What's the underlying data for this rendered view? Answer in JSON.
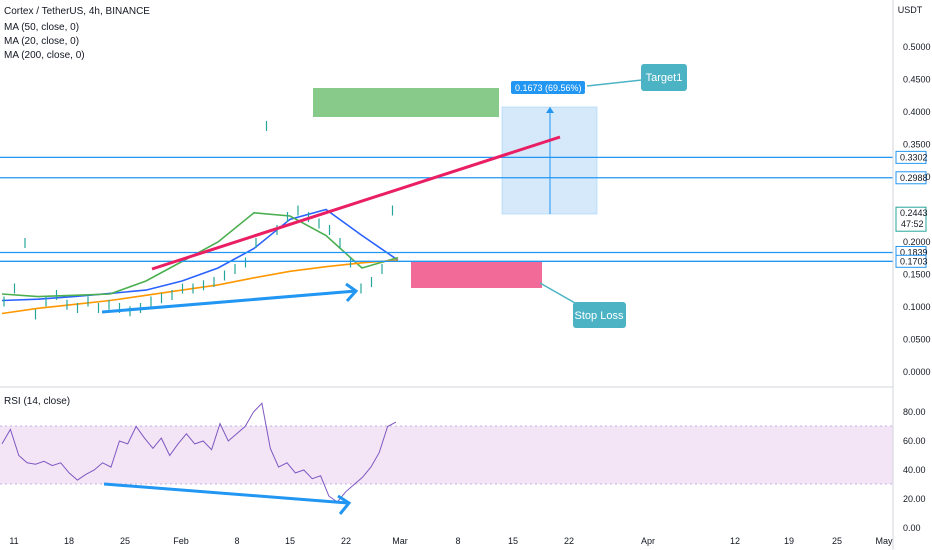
{
  "header": {
    "title": "Cortex / TetherUS, 4h, BINANCE",
    "indicators": [
      "MA (50, close, 0)",
      "MA (20, close, 0)",
      "MA (200, close, 0)"
    ],
    "currency": "USDT",
    "rsi_label": "RSI (14, close)"
  },
  "colors": {
    "hline": "#2196f3",
    "trend_up": "#e91e63",
    "ma50": "#2962ff",
    "ma20": "#4caf50",
    "ma200": "#ff9800",
    "candle": "#26a69a",
    "rsi_line": "#7e57c2",
    "rsi_band": "#f3e5f5",
    "arrow": "#2196f3",
    "annotation_bg": "#4cb3c4",
    "target_box": "#81c784",
    "stop_box": "#f06292",
    "range_box": "#d6e9fb"
  },
  "chart_data": [
    {
      "type": "line",
      "title": "Cortex / TetherUS, 4h, BINANCE",
      "price_axis": {
        "ticks": [
          "0.5000",
          "0.4500",
          "0.4000",
          "0.3500",
          "0.3000",
          "0.2000",
          "0.1500",
          "0.1000",
          "0.0500",
          "0.0000"
        ],
        "ylim": [
          0,
          0.5
        ]
      },
      "time_axis": {
        "ticks": [
          "11",
          "18",
          "25",
          "Feb",
          "8",
          "15",
          "22",
          "Mar",
          "8",
          "15",
          "22",
          "Apr",
          "12",
          "19",
          "25",
          "May"
        ]
      },
      "price_tags": [
        {
          "label": "0.3302",
          "value": 0.3302,
          "highlight": false
        },
        {
          "label": "0.2988",
          "value": 0.2988,
          "highlight": false
        },
        {
          "label": "0.2443",
          "sub": "47:52",
          "value": 0.2443,
          "highlight": true
        },
        {
          "label": "0.1839",
          "value": 0.1839,
          "highlight": false
        },
        {
          "label": "0.1703",
          "value": 0.1703,
          "highlight": false
        }
      ],
      "horizontal_lines": [
        0.3302,
        0.2988,
        0.1839,
        0.1703
      ],
      "measure_label": "0.1673 (69.56%) 1673",
      "annotations": [
        "Target1",
        "Stop Loss"
      ],
      "series": [
        {
          "name": "MA (50, close, 0)",
          "values": [
            0.11,
            0.112,
            0.116,
            0.121,
            0.126,
            0.14,
            0.16,
            0.19,
            0.235,
            0.25,
            0.21,
            0.172
          ]
        },
        {
          "name": "MA (20, close, 0)",
          "values": [
            0.12,
            0.116,
            0.118,
            0.12,
            0.14,
            0.17,
            0.2,
            0.245,
            0.24,
            0.21,
            0.16,
            0.176
          ]
        },
        {
          "name": "MA (200, close, 0)",
          "values": [
            0.09,
            0.098,
            0.104,
            0.11,
            0.118,
            0.126,
            0.134,
            0.145,
            0.155,
            0.162,
            0.168,
            0.172
          ]
        }
      ]
    },
    {
      "type": "line",
      "title": "RSI (14, close)",
      "ticks": [
        "80.00",
        "60.00",
        "40.00",
        "20.00",
        "0.00"
      ],
      "ylim": [
        0,
        90
      ],
      "band": [
        30,
        70
      ],
      "series": [
        {
          "name": "RSI (14, close)",
          "values": [
            58,
            68,
            50,
            45,
            44,
            46,
            43,
            45,
            38,
            33,
            37,
            40,
            45,
            42,
            60,
            58,
            70,
            62,
            55,
            62,
            50,
            58,
            65,
            58,
            60,
            54,
            72,
            60,
            65,
            70,
            80,
            86,
            55,
            42,
            45,
            38,
            40,
            34,
            36,
            22,
            18,
            25,
            30,
            35,
            42,
            52,
            70,
            73
          ]
        }
      ]
    }
  ]
}
